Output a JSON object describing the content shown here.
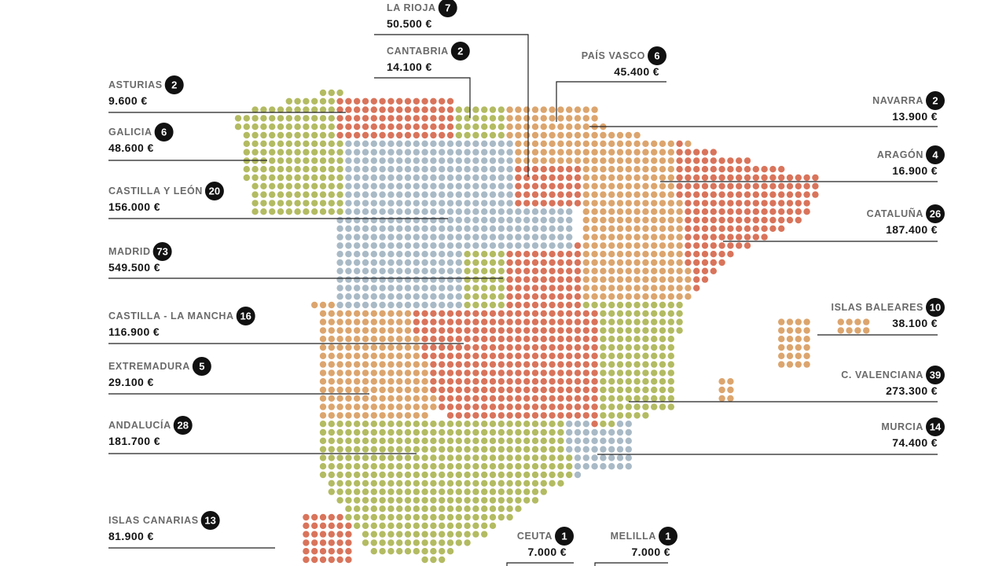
{
  "regions": [
    {
      "name": "ASTURIAS",
      "count": 2,
      "amount": "9.600 €"
    },
    {
      "name": "GALICIA",
      "count": 6,
      "amount": "48.600 €"
    },
    {
      "name": "CASTILLA Y LEÓN",
      "count": 20,
      "amount": "156.000 €"
    },
    {
      "name": "MADRID",
      "count": 73,
      "amount": "549.500 €"
    },
    {
      "name": "CASTILLA - LA MANCHA",
      "count": 16,
      "amount": "116.900 €"
    },
    {
      "name": "EXTREMADURA",
      "count": 5,
      "amount": "29.100 €"
    },
    {
      "name": "ANDALUCÍA",
      "count": 28,
      "amount": "181.700 €"
    },
    {
      "name": "ISLAS CANARIAS",
      "count": 13,
      "amount": "81.900 €"
    },
    {
      "name": "LA RIOJA",
      "count": 7,
      "amount": "50.500 €"
    },
    {
      "name": "CANTABRIA",
      "count": 2,
      "amount": "14.100 €"
    },
    {
      "name": "PAÍS VASCO",
      "count": 6,
      "amount": "45.400 €"
    },
    {
      "name": "NAVARRA",
      "count": 2,
      "amount": "13.900 €"
    },
    {
      "name": "ARAGÓN",
      "count": 4,
      "amount": "16.900 €"
    },
    {
      "name": "CATALUÑA",
      "count": 26,
      "amount": "187.400 €"
    },
    {
      "name": "ISLAS BALEARES",
      "count": 10,
      "amount": "38.100 €"
    },
    {
      "name": "C. VALENCIANA",
      "count": 39,
      "amount": "273.300 €"
    },
    {
      "name": "MURCIA",
      "count": 14,
      "amount": "74.400 €"
    },
    {
      "name": "CEUTA",
      "count": 1,
      "amount": "7.000 €"
    },
    {
      "name": "MELILLA",
      "count": 1,
      "amount": "7.000 €"
    }
  ]
}
